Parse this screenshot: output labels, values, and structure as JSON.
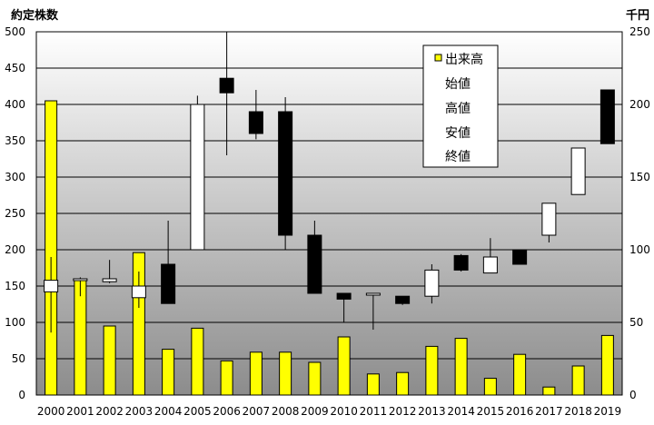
{
  "chart_data": {
    "type": "candlestick-volume",
    "left_unit": "約定株数",
    "right_unit": "千円",
    "categories": [
      "2000",
      "2001",
      "2002",
      "2003",
      "2004",
      "2005",
      "2006",
      "2007",
      "2008",
      "2009",
      "2010",
      "2011",
      "2012",
      "2013",
      "2014",
      "2015",
      "2016",
      "2017",
      "2018",
      "2019"
    ],
    "left_axis": {
      "min": 0,
      "max": 500,
      "ticks": [
        0,
        50,
        100,
        150,
        200,
        250,
        300,
        350,
        400,
        450,
        500
      ]
    },
    "right_axis": {
      "min": 0,
      "max": 250,
      "ticks": [
        0,
        50,
        100,
        150,
        200,
        250
      ]
    },
    "series": [
      {
        "name": "出来高",
        "axis": "left",
        "color": "#ffff00",
        "values": [
          405,
          160,
          95,
          196,
          63,
          92,
          47,
          59,
          59,
          45,
          80,
          29,
          31,
          67,
          78,
          23,
          56,
          11,
          40,
          82
        ]
      },
      {
        "name": "始値",
        "axis": "right",
        "values": [
          71,
          80,
          78,
          67,
          90,
          100,
          218,
          195,
          195,
          110,
          70,
          69,
          68,
          68,
          96,
          84,
          100,
          110,
          138,
          210
        ]
      },
      {
        "name": "高値",
        "axis": "right",
        "values": [
          95,
          81,
          93,
          85,
          120,
          206,
          250,
          210,
          205,
          120,
          70,
          70,
          68,
          90,
          97,
          108,
          100,
          132,
          170,
          210
        ]
      },
      {
        "name": "安値",
        "axis": "right",
        "values": [
          43,
          68,
          77,
          60,
          64,
          100,
          165,
          176,
          100,
          70,
          50,
          45,
          62,
          63,
          85,
          84,
          90,
          105,
          138,
          173
        ]
      },
      {
        "name": "終値",
        "axis": "right",
        "values": [
          79,
          80,
          80,
          75,
          63,
          200,
          208,
          180,
          110,
          70,
          66,
          70,
          63,
          86,
          86,
          95,
          90,
          132,
          170,
          173
        ]
      }
    ]
  }
}
